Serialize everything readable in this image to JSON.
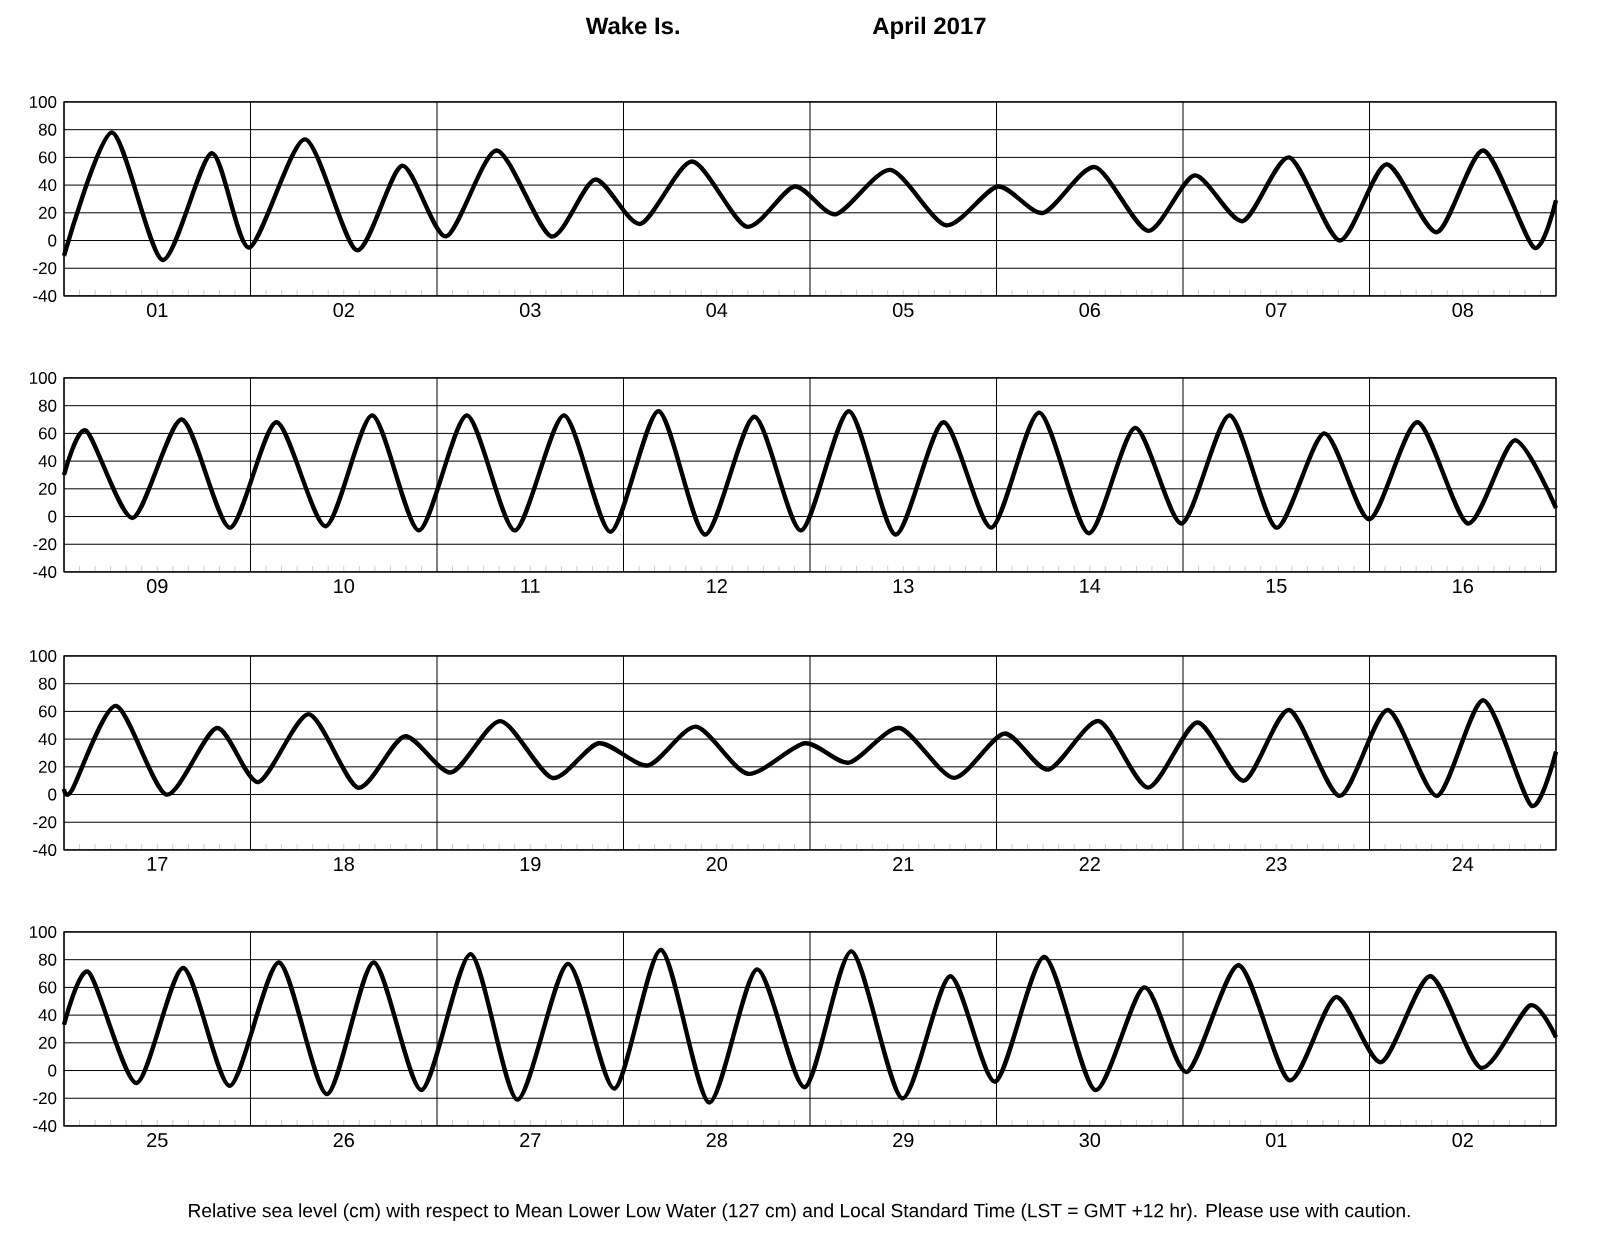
{
  "chart_data": [
    {
      "type": "line",
      "title": "Wake Is.",
      "subtitle": "April   2017",
      "x": [
        "2017-04-01T00:00",
        "2017-04-01T06:10",
        "2017-04-01T12:40",
        "2017-04-01T19:00",
        "2017-04-01T23:50",
        "2017-04-02T07:00",
        "2017-04-02T13:40",
        "2017-04-02T19:30",
        "2017-04-03T01:10",
        "2017-04-03T07:40",
        "2017-04-03T14:40",
        "2017-04-03T20:20",
        "2017-04-04T02:10",
        "2017-04-04T08:50",
        "2017-04-04T15:50",
        "2017-04-04T22:00",
        "2017-04-05T03:20",
        "2017-04-05T10:20",
        "2017-04-05T17:30",
        "2017-04-06T00:10",
        "2017-04-06T06:00",
        "2017-04-06T12:40",
        "2017-04-06T19:30",
        "2017-04-07T01:30",
        "2017-04-07T07:40",
        "2017-04-07T13:40",
        "2017-04-07T20:10",
        "2017-04-08T02:10",
        "2017-04-08T08:40",
        "2017-04-08T14:40",
        "2017-04-08T21:10",
        "2017-04-09T00:00"
      ],
      "series": [
        {
          "color": "#000000",
          "values": [
            -11,
            78,
            -14,
            63,
            -5,
            73,
            -7,
            54,
            3,
            65,
            3,
            44,
            12,
            57,
            10,
            39,
            19,
            51,
            11,
            39,
            20,
            53,
            7,
            47,
            14,
            60,
            0,
            55,
            6,
            65,
            -5,
            29
          ]
        }
      ],
      "xlim": [
        "2017-04-01T00:00",
        "2017-04-09T00:00"
      ],
      "ylim": [
        -40,
        100
      ],
      "yticks": [
        -40,
        -20,
        0,
        20,
        40,
        60,
        80,
        100
      ],
      "xticks": [
        {
          "value": "2017-04-01T00:00",
          "label": null
        },
        {
          "value": "2017-04-01T12:00",
          "label": "01"
        },
        {
          "value": "2017-04-02T00:00",
          "label": null
        },
        {
          "value": "2017-04-02T12:00",
          "label": "02"
        },
        {
          "value": "2017-04-03T00:00",
          "label": null
        },
        {
          "value": "2017-04-03T12:00",
          "label": "03"
        },
        {
          "value": "2017-04-04T00:00",
          "label": null
        },
        {
          "value": "2017-04-04T12:00",
          "label": "04"
        },
        {
          "value": "2017-04-05T00:00",
          "label": null
        },
        {
          "value": "2017-04-05T12:00",
          "label": "05"
        },
        {
          "value": "2017-04-06T00:00",
          "label": null
        },
        {
          "value": "2017-04-06T12:00",
          "label": "06"
        },
        {
          "value": "2017-04-07T00:00",
          "label": null
        },
        {
          "value": "2017-04-07T12:00",
          "label": "07"
        },
        {
          "value": "2017-04-08T00:00",
          "label": null
        },
        {
          "value": "2017-04-08T12:00",
          "label": "08"
        },
        {
          "value": "2017-04-09T00:00",
          "label": null
        }
      ],
      "grid": true
    },
    {
      "type": "line",
      "x": [
        "2017-04-09T00:00",
        "2017-04-09T02:50",
        "2017-04-09T08:50",
        "2017-04-09T15:10",
        "2017-04-09T21:20",
        "2017-04-10T03:20",
        "2017-04-10T09:40",
        "2017-04-10T15:40",
        "2017-04-10T21:40",
        "2017-04-11T03:50",
        "2017-04-11T10:00",
        "2017-04-11T16:20",
        "2017-04-11T22:20",
        "2017-04-12T04:30",
        "2017-04-12T10:30",
        "2017-04-12T16:50",
        "2017-04-12T22:50",
        "2017-04-13T05:00",
        "2017-04-13T11:00",
        "2017-04-13T17:10",
        "2017-04-13T23:20",
        "2017-04-14T05:30",
        "2017-04-14T11:50",
        "2017-04-14T17:50",
        "2017-04-14T23:50",
        "2017-04-15T06:00",
        "2017-04-15T12:00",
        "2017-04-15T18:10",
        "2017-04-16T00:00",
        "2017-04-16T06:10",
        "2017-04-16T12:40",
        "2017-04-16T18:40",
        "2017-04-17T00:00"
      ],
      "series": [
        {
          "color": "#000000",
          "values": [
            30,
            62,
            -1,
            70,
            -8,
            68,
            -7,
            73,
            -10,
            73,
            -10,
            73,
            -11,
            76,
            -13,
            72,
            -10,
            76,
            -13,
            68,
            -8,
            75,
            -12,
            64,
            -5,
            73,
            -8,
            60,
            -2,
            68,
            -5,
            55,
            6
          ]
        }
      ],
      "xlim": [
        "2017-04-09T00:00",
        "2017-04-17T00:00"
      ],
      "ylim": [
        -40,
        100
      ],
      "yticks": [
        -40,
        -20,
        0,
        20,
        40,
        60,
        80,
        100
      ],
      "xticks": [
        {
          "value": "2017-04-09T00:00",
          "label": null
        },
        {
          "value": "2017-04-09T12:00",
          "label": "09"
        },
        {
          "value": "2017-04-10T00:00",
          "label": null
        },
        {
          "value": "2017-04-10T12:00",
          "label": "10"
        },
        {
          "value": "2017-04-11T00:00",
          "label": null
        },
        {
          "value": "2017-04-11T12:00",
          "label": "11"
        },
        {
          "value": "2017-04-12T00:00",
          "label": null
        },
        {
          "value": "2017-04-12T12:00",
          "label": "12"
        },
        {
          "value": "2017-04-13T00:00",
          "label": null
        },
        {
          "value": "2017-04-13T12:00",
          "label": "13"
        },
        {
          "value": "2017-04-14T00:00",
          "label": null
        },
        {
          "value": "2017-04-14T12:00",
          "label": "14"
        },
        {
          "value": "2017-04-15T00:00",
          "label": null
        },
        {
          "value": "2017-04-15T12:00",
          "label": "15"
        },
        {
          "value": "2017-04-16T00:00",
          "label": null
        },
        {
          "value": "2017-04-16T12:00",
          "label": "16"
        },
        {
          "value": "2017-04-17T00:00",
          "label": null
        }
      ],
      "grid": true
    },
    {
      "type": "line",
      "x": [
        "2017-04-17T00:00",
        "2017-04-17T01:00",
        "2017-04-17T06:40",
        "2017-04-17T13:10",
        "2017-04-17T19:40",
        "2017-04-18T01:00",
        "2017-04-18T07:30",
        "2017-04-18T13:50",
        "2017-04-18T19:50",
        "2017-04-19T01:50",
        "2017-04-19T08:10",
        "2017-04-19T14:50",
        "2017-04-19T20:50",
        "2017-04-20T03:10",
        "2017-04-20T09:20",
        "2017-04-20T16:00",
        "2017-04-20T23:20",
        "2017-04-21T05:00",
        "2017-04-21T11:30",
        "2017-04-21T18:30",
        "2017-04-22T01:00",
        "2017-04-22T06:40",
        "2017-04-22T13:10",
        "2017-04-22T19:30",
        "2017-04-23T01:50",
        "2017-04-23T07:50",
        "2017-04-23T13:40",
        "2017-04-23T20:10",
        "2017-04-24T02:20",
        "2017-04-24T08:40",
        "2017-04-24T14:40",
        "2017-04-24T20:50",
        "2017-04-25T00:00"
      ],
      "series": [
        {
          "color": "#000000",
          "values": [
            4,
            3,
            64,
            0,
            48,
            9,
            58,
            5,
            42,
            16,
            53,
            12,
            37,
            21,
            49,
            15,
            37,
            23,
            48,
            12,
            44,
            18,
            53,
            5,
            52,
            10,
            61,
            -1,
            61,
            -1,
            68,
            -8,
            31
          ]
        }
      ],
      "xlim": [
        "2017-04-17T00:00",
        "2017-04-25T00:00"
      ],
      "ylim": [
        -40,
        100
      ],
      "yticks": [
        -40,
        -20,
        0,
        20,
        40,
        60,
        80,
        100
      ],
      "xticks": [
        {
          "value": "2017-04-17T00:00",
          "label": null
        },
        {
          "value": "2017-04-17T12:00",
          "label": "17"
        },
        {
          "value": "2017-04-18T00:00",
          "label": null
        },
        {
          "value": "2017-04-18T12:00",
          "label": "18"
        },
        {
          "value": "2017-04-19T00:00",
          "label": null
        },
        {
          "value": "2017-04-19T12:00",
          "label": "19"
        },
        {
          "value": "2017-04-20T00:00",
          "label": null
        },
        {
          "value": "2017-04-20T12:00",
          "label": "20"
        },
        {
          "value": "2017-04-21T00:00",
          "label": null
        },
        {
          "value": "2017-04-21T12:00",
          "label": "21"
        },
        {
          "value": "2017-04-22T00:00",
          "label": null
        },
        {
          "value": "2017-04-22T12:00",
          "label": "22"
        },
        {
          "value": "2017-04-23T00:00",
          "label": null
        },
        {
          "value": "2017-04-23T12:00",
          "label": "23"
        },
        {
          "value": "2017-04-24T00:00",
          "label": null
        },
        {
          "value": "2017-04-24T12:00",
          "label": "24"
        },
        {
          "value": "2017-04-25T00:00",
          "label": null
        }
      ],
      "grid": true
    },
    {
      "type": "line",
      "x": [
        "2017-04-25T00:00",
        "2017-04-25T03:10",
        "2017-04-25T09:20",
        "2017-04-25T15:20",
        "2017-04-25T21:20",
        "2017-04-26T03:40",
        "2017-04-26T09:50",
        "2017-04-26T15:50",
        "2017-04-26T22:00",
        "2017-04-27T04:20",
        "2017-04-27T10:20",
        "2017-04-27T16:50",
        "2017-04-27T22:50",
        "2017-04-28T04:50",
        "2017-04-28T11:00",
        "2017-04-28T17:10",
        "2017-04-28T23:20",
        "2017-04-29T05:20",
        "2017-04-29T11:50",
        "2017-04-29T18:00",
        "2017-04-29T23:50",
        "2017-04-30T06:10",
        "2017-04-30T12:40",
        "2017-04-30T19:00",
        "2017-05-01T00:30",
        "2017-05-01T07:10",
        "2017-05-01T13:40",
        "2017-05-01T19:40",
        "2017-05-02T01:30",
        "2017-05-02T07:50",
        "2017-05-02T14:20",
        "2017-05-02T20:40",
        "2017-05-03T00:00"
      ],
      "series": [
        {
          "color": "#000000",
          "values": [
            33,
            71,
            -9,
            74,
            -11,
            78,
            -17,
            78,
            -14,
            84,
            -21,
            77,
            -13,
            87,
            -23,
            73,
            -12,
            86,
            -20,
            68,
            -8,
            82,
            -14,
            60,
            -1,
            76,
            -7,
            53,
            6,
            68,
            2,
            47,
            24
          ]
        }
      ],
      "xlim": [
        "2017-04-25T00:00",
        "2017-05-03T00:00"
      ],
      "ylim": [
        -40,
        100
      ],
      "yticks": [
        -40,
        -20,
        0,
        20,
        40,
        60,
        80,
        100
      ],
      "xticks": [
        {
          "value": "2017-04-25T00:00",
          "label": null
        },
        {
          "value": "2017-04-25T12:00",
          "label": "25"
        },
        {
          "value": "2017-04-26T00:00",
          "label": null
        },
        {
          "value": "2017-04-26T12:00",
          "label": "26"
        },
        {
          "value": "2017-04-27T00:00",
          "label": null
        },
        {
          "value": "2017-04-27T12:00",
          "label": "27"
        },
        {
          "value": "2017-04-28T00:00",
          "label": null
        },
        {
          "value": "2017-04-28T12:00",
          "label": "28"
        },
        {
          "value": "2017-04-29T00:00",
          "label": null
        },
        {
          "value": "2017-04-29T12:00",
          "label": "29"
        },
        {
          "value": "2017-04-30T00:00",
          "label": null
        },
        {
          "value": "2017-04-30T12:00",
          "label": "30"
        },
        {
          "value": "2017-05-01T00:00",
          "label": null
        },
        {
          "value": "2017-05-01T12:00",
          "label": "01"
        },
        {
          "value": "2017-05-02T00:00",
          "label": null
        },
        {
          "value": "2017-05-02T12:00",
          "label": "02"
        },
        {
          "value": "2017-05-03T00:00",
          "label": null
        }
      ],
      "grid": true,
      "annotations": [
        "Relative sea level (cm) with respect to Mean Lower Low Water (127 cm) and Local Standard Time (LST = GMT +12 hr). Please use with caution."
      ]
    }
  ]
}
